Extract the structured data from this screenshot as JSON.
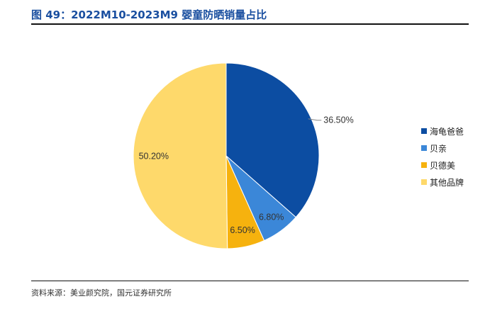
{
  "header": {
    "title": "图 49：2022M10-2023M9 婴童防晒销量占比"
  },
  "footer": {
    "source": "资料来源：美业颜究院，国元证券研究所"
  },
  "chart_data": {
    "type": "pie",
    "title": "",
    "legend_position": "right",
    "slices": [
      {
        "name": "海龟爸爸",
        "value": 36.5,
        "label": "36.50%",
        "color": "#0c4da2"
      },
      {
        "name": "贝亲",
        "value": 6.8,
        "label": "6.80%",
        "color": "#3b87d8"
      },
      {
        "name": "贝德美",
        "value": 6.5,
        "label": "6.50%",
        "color": "#f6b20e"
      },
      {
        "name": "其他品牌",
        "value": 50.2,
        "label": "50.20%",
        "color": "#fed96b"
      }
    ]
  }
}
